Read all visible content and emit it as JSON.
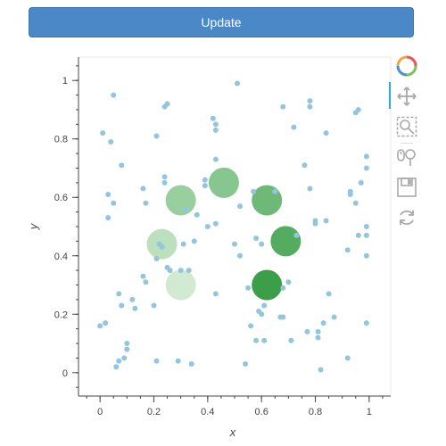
{
  "update_button": {
    "label": "Update"
  },
  "toolbar": {
    "items": [
      {
        "name": "bokeh-logo-icon",
        "active": false
      },
      {
        "name": "pan-icon",
        "active": true
      },
      {
        "name": "box-zoom-icon",
        "active": false
      },
      {
        "name": "wheel-zoom-icon",
        "active": false
      },
      {
        "name": "save-icon",
        "active": false
      },
      {
        "name": "reset-icon",
        "active": false
      }
    ]
  },
  "colors": {
    "scatter": "#92c5de",
    "bubble_dark": "#2f9a3e",
    "bubble_light": "#e5f4e3",
    "active_tool": "#26aae1"
  },
  "chart_data": {
    "type": "scatter",
    "xlabel": "x",
    "ylabel": "y",
    "xlim": [
      -0.08,
      1.08
    ],
    "ylim": [
      -0.08,
      1.08
    ],
    "x_ticks": [
      0,
      0.2,
      0.4,
      0.6,
      0.8,
      1
    ],
    "y_ticks": [
      0,
      0.2,
      0.4,
      0.6,
      0.8,
      1
    ],
    "x_tick_labels": [
      "0",
      "0.2",
      "0.4",
      "0.6",
      "0.8",
      "1"
    ],
    "y_tick_labels": [
      "0",
      "0.2",
      "0.4",
      "0.6",
      "0.8",
      "1"
    ],
    "grid": false,
    "series": [
      {
        "points": [
          [
            0.05,
            0.95
          ],
          [
            0.51,
            0.99
          ],
          [
            0.25,
            0.92
          ],
          [
            0.24,
            0.91
          ],
          [
            0.68,
            0.91
          ],
          [
            0.78,
            0.93
          ],
          [
            0.78,
            0.91
          ],
          [
            0.96,
            0.9
          ],
          [
            0.95,
            0.89
          ],
          [
            0.42,
            0.87
          ],
          [
            0.43,
            0.85
          ],
          [
            0.43,
            0.83
          ],
          [
            0.72,
            0.84
          ],
          [
            0.01,
            0.82
          ],
          [
            0.21,
            0.81
          ],
          [
            0.04,
            0.79
          ],
          [
            0.84,
            0.82
          ],
          [
            0.99,
            0.74
          ],
          [
            0.99,
            0.7
          ],
          [
            0.08,
            0.71
          ],
          [
            0.43,
            0.73
          ],
          [
            0.76,
            0.71
          ],
          [
            0.24,
            0.67
          ],
          [
            0.24,
            0.65
          ],
          [
            0.39,
            0.66
          ],
          [
            0.39,
            0.64
          ],
          [
            0.57,
            0.62
          ],
          [
            0.65,
            0.62
          ],
          [
            0.78,
            0.63
          ],
          [
            0.93,
            0.62
          ],
          [
            0.97,
            0.65
          ],
          [
            0.16,
            0.63
          ],
          [
            0.03,
            0.61
          ],
          [
            0.05,
            0.58
          ],
          [
            0.17,
            0.58
          ],
          [
            0.32,
            0.56
          ],
          [
            0.36,
            0.54
          ],
          [
            0.52,
            0.57
          ],
          [
            0.03,
            0.53
          ],
          [
            0.4,
            0.5
          ],
          [
            0.43,
            0.51
          ],
          [
            0.8,
            0.52
          ],
          [
            0.8,
            0.51
          ],
          [
            0.93,
            0.61
          ],
          [
            0.84,
            0.52
          ],
          [
            0.95,
            0.58
          ],
          [
            0.99,
            0.5
          ],
          [
            0.99,
            0.47
          ],
          [
            0.58,
            0.46
          ],
          [
            0.73,
            0.47
          ],
          [
            0.6,
            0.44
          ],
          [
            0.5,
            0.44
          ],
          [
            0.52,
            0.4
          ],
          [
            0.31,
            0.44
          ],
          [
            0.22,
            0.44
          ],
          [
            0.23,
            0.43
          ],
          [
            0.96,
            0.47
          ],
          [
            0.92,
            0.42
          ],
          [
            0.99,
            0.4
          ],
          [
            0.21,
            0.39
          ],
          [
            0.25,
            0.36
          ],
          [
            0.26,
            0.35
          ],
          [
            0.3,
            0.35
          ],
          [
            0.33,
            0.35
          ],
          [
            0.16,
            0.33
          ],
          [
            0.17,
            0.31
          ],
          [
            0.7,
            0.31
          ],
          [
            0.68,
            0.29
          ],
          [
            0.55,
            0.29
          ],
          [
            0.43,
            0.27
          ],
          [
            0.07,
            0.27
          ],
          [
            0.12,
            0.25
          ],
          [
            0.85,
            0.27
          ],
          [
            0.08,
            0.23
          ],
          [
            0.13,
            0.22
          ],
          [
            0.2,
            0.23
          ],
          [
            0.61,
            0.23
          ],
          [
            0.59,
            0.21
          ],
          [
            0.6,
            0.2
          ],
          [
            0.67,
            0.19
          ],
          [
            0.68,
            0.19
          ],
          [
            0.87,
            0.19
          ],
          [
            0.99,
            0.17
          ],
          [
            0.83,
            0.17
          ],
          [
            0.02,
            0.17
          ],
          [
            0.0,
            0.16
          ],
          [
            0.56,
            0.16
          ],
          [
            0.58,
            0.11
          ],
          [
            0.61,
            0.11
          ],
          [
            0.71,
            0.11
          ],
          [
            0.81,
            0.14
          ],
          [
            0.81,
            0.12
          ],
          [
            0.1,
            0.1
          ],
          [
            0.1,
            0.08
          ],
          [
            0.09,
            0.05
          ],
          [
            0.07,
            0.04
          ],
          [
            0.06,
            0.02
          ],
          [
            0.29,
            0.04
          ],
          [
            0.34,
            0.03
          ],
          [
            0.54,
            0.03
          ],
          [
            0.82,
            0.01
          ],
          [
            0.21,
            0.04
          ],
          [
            0.92,
            0.05
          ],
          [
            0.77,
            0.14
          ],
          [
            0.35,
            0.45
          ]
        ]
      },
      {
        "bubbles": [
          {
            "x": 0.3,
            "y": 0.59,
            "shade": 0.45
          },
          {
            "x": 0.46,
            "y": 0.65,
            "shade": 0.55
          },
          {
            "x": 0.62,
            "y": 0.59,
            "shade": 0.7
          },
          {
            "x": 0.23,
            "y": 0.44,
            "shade": 0.25
          },
          {
            "x": 0.69,
            "y": 0.45,
            "shade": 0.85
          },
          {
            "x": 0.3,
            "y": 0.3,
            "shade": 0.12
          },
          {
            "x": 0.62,
            "y": 0.3,
            "shade": 1.0
          }
        ]
      }
    ]
  }
}
